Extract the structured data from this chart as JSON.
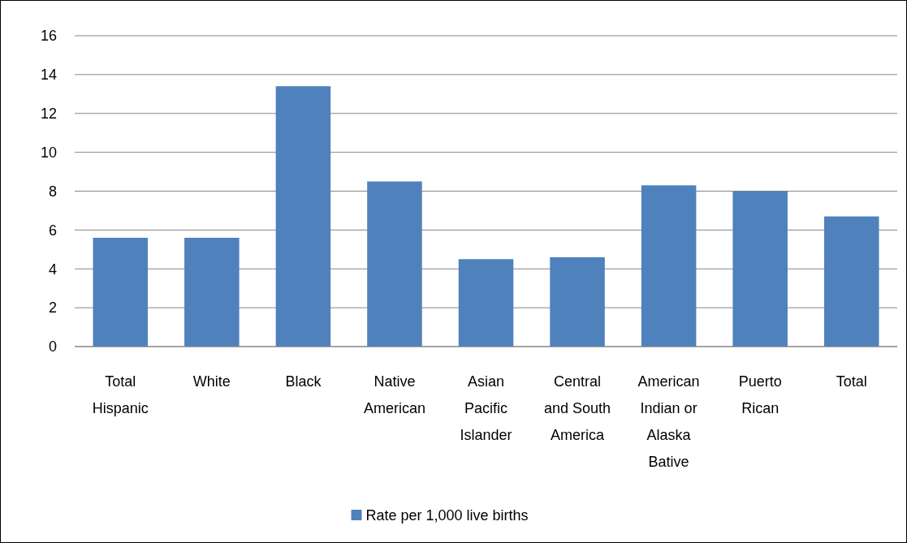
{
  "chart_data": {
    "type": "bar",
    "categories": [
      "Total Hispanic",
      "White",
      "Black",
      "Native American",
      "Asian Pacific Islander",
      "Central and South America",
      "American Indian or Alaska Bative",
      "Puerto Rican",
      "Total"
    ],
    "series": [
      {
        "name": "Rate per 1,000 live births",
        "color": "#4f81bd",
        "values": [
          5.6,
          5.6,
          13.4,
          8.5,
          4.5,
          4.6,
          8.3,
          8.0,
          6.7
        ]
      }
    ],
    "ylim": [
      0,
      16
    ],
    "yticks": [
      0,
      2,
      4,
      6,
      8,
      10,
      12,
      14,
      16
    ],
    "grid": "y",
    "legend": "bottom"
  }
}
